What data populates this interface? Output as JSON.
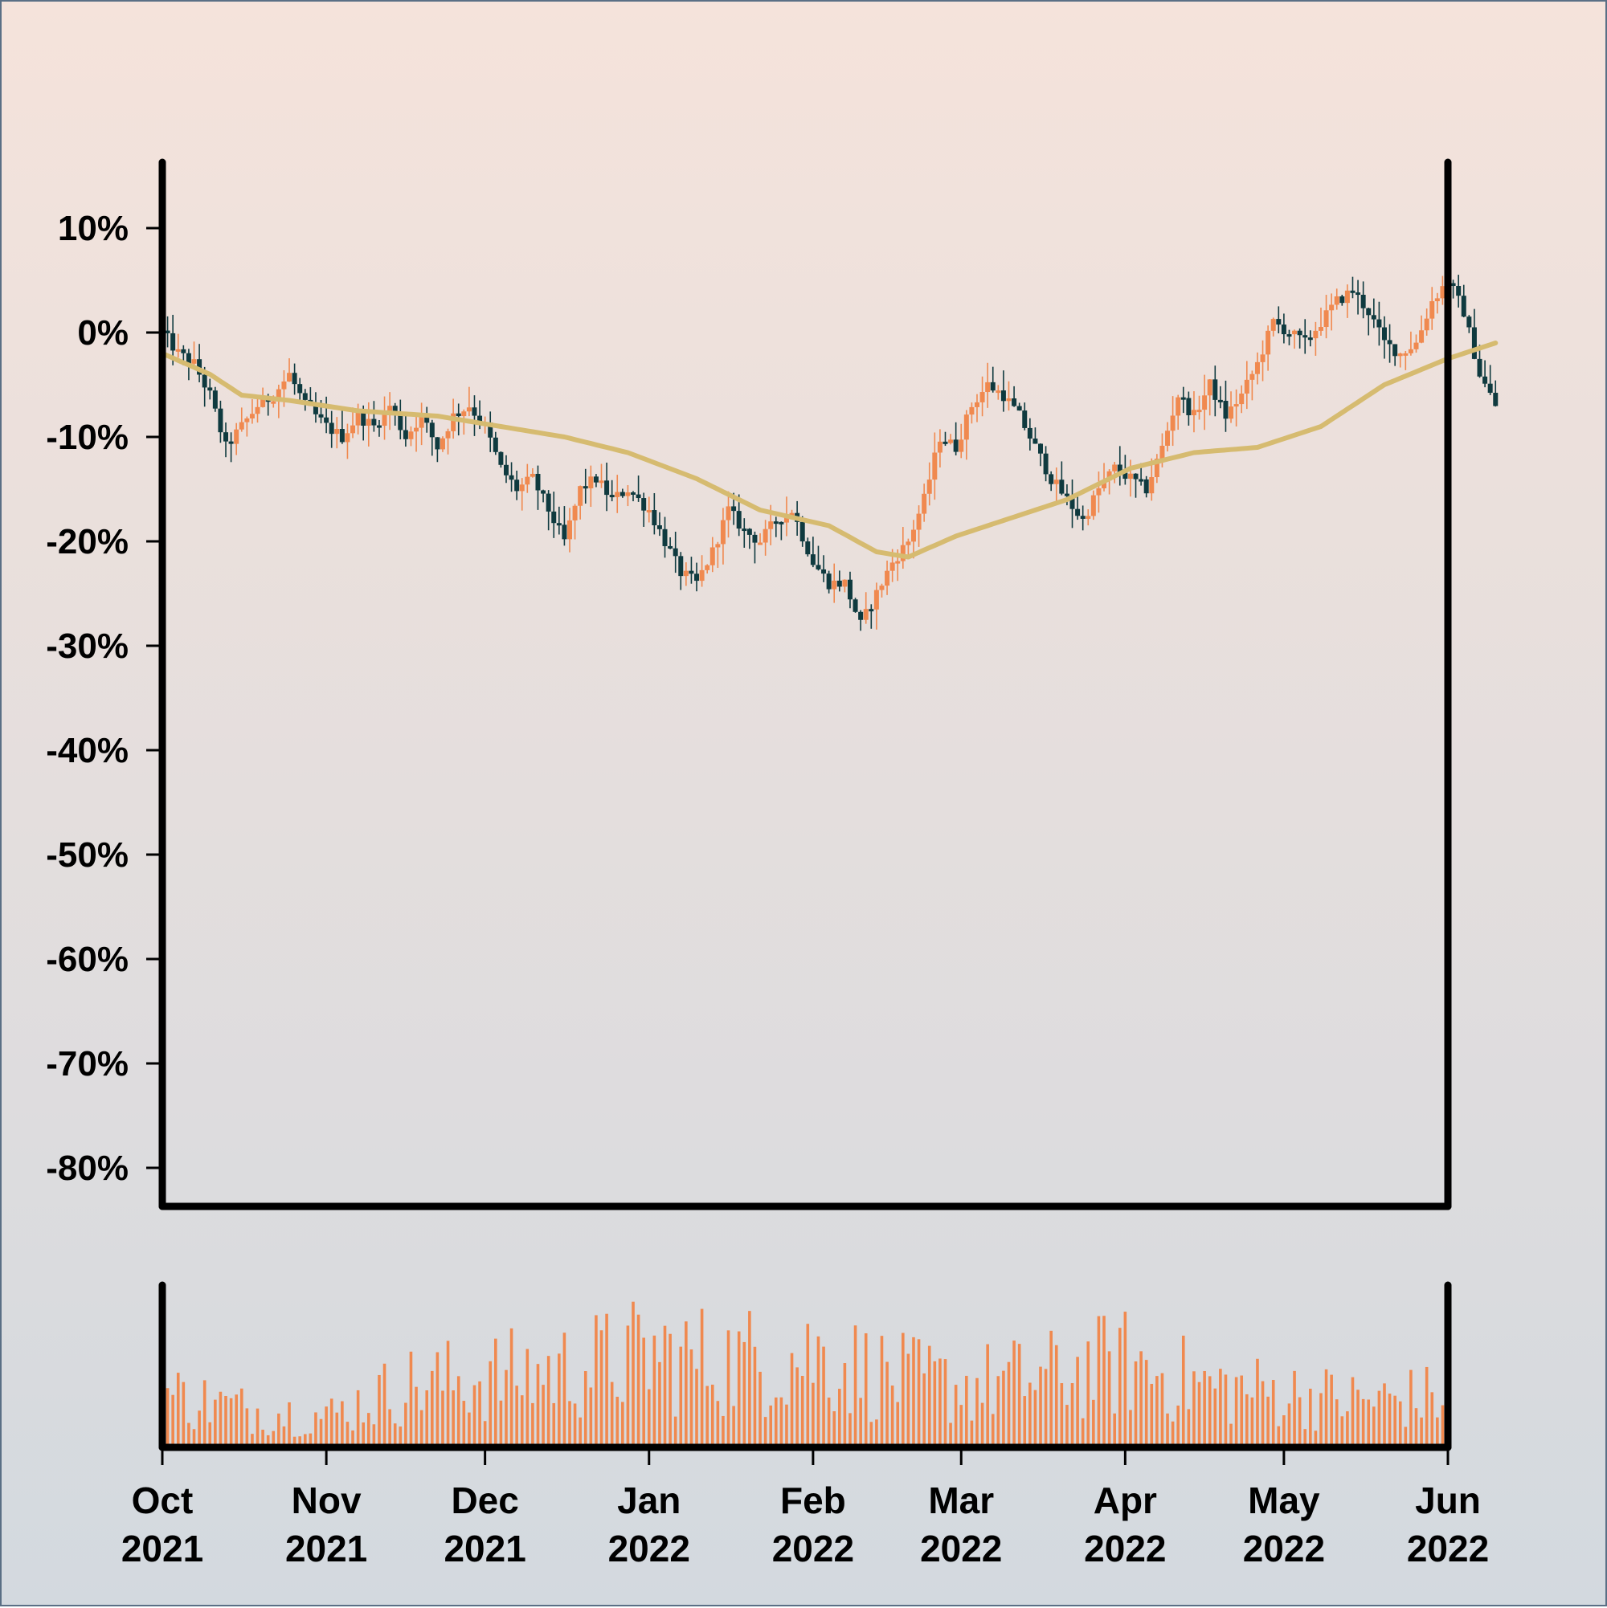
{
  "chart_data": {
    "type": "candlestick",
    "title": "",
    "xlabel": "",
    "ylabel": "",
    "x_range": [
      "2021-10-01",
      "2022-06-01"
    ],
    "ylim": [
      -0.8,
      0.13
    ],
    "yticks": [
      {
        "value": 0.1,
        "label": "10%"
      },
      {
        "value": 0.0,
        "label": "0%"
      },
      {
        "value": -0.1,
        "label": "-10%"
      },
      {
        "value": -0.2,
        "label": "-20%"
      },
      {
        "value": -0.3,
        "label": "-30%"
      },
      {
        "value": -0.4,
        "label": "-40%"
      },
      {
        "value": -0.5,
        "label": "-50%"
      },
      {
        "value": -0.6,
        "label": "-60%"
      },
      {
        "value": -0.7,
        "label": "-70%"
      },
      {
        "value": -0.8,
        "label": "-80%"
      }
    ],
    "xticks": [
      {
        "date": "2021-10-01",
        "month": "Oct",
        "year": "2021"
      },
      {
        "date": "2021-11-01",
        "month": "Nov",
        "year": "2021"
      },
      {
        "date": "2021-12-01",
        "month": "Dec",
        "year": "2021"
      },
      {
        "date": "2022-01-01",
        "month": "Jan",
        "year": "2022"
      },
      {
        "date": "2022-02-01",
        "month": "Feb",
        "year": "2022"
      },
      {
        "date": "2022-03-01",
        "month": "Mar",
        "year": "2022"
      },
      {
        "date": "2022-04-01",
        "month": "Apr",
        "year": "2022"
      },
      {
        "date": "2022-05-01",
        "month": "May",
        "year": "2022"
      },
      {
        "date": "2022-06-01",
        "month": "Jun",
        "year": "2022"
      }
    ],
    "price_path": [
      [
        "2021-10-01",
        0.0
      ],
      [
        "2021-10-04",
        -0.02
      ],
      [
        "2021-10-07",
        -0.03
      ],
      [
        "2021-10-10",
        -0.06
      ],
      [
        "2021-10-13",
        -0.11
      ],
      [
        "2021-10-16",
        -0.09
      ],
      [
        "2021-10-19",
        -0.07
      ],
      [
        "2021-10-22",
        -0.06
      ],
      [
        "2021-10-25",
        -0.04
      ],
      [
        "2021-10-28",
        -0.07
      ],
      [
        "2021-11-01",
        -0.09
      ],
      [
        "2021-11-04",
        -0.1
      ],
      [
        "2021-11-07",
        -0.08
      ],
      [
        "2021-11-10",
        -0.09
      ],
      [
        "2021-11-13",
        -0.07
      ],
      [
        "2021-11-16",
        -0.1
      ],
      [
        "2021-11-19",
        -0.08
      ],
      [
        "2021-11-22",
        -0.11
      ],
      [
        "2021-11-25",
        -0.08
      ],
      [
        "2021-11-28",
        -0.07
      ],
      [
        "2021-12-01",
        -0.09
      ],
      [
        "2021-12-04",
        -0.13
      ],
      [
        "2021-12-07",
        -0.15
      ],
      [
        "2021-12-10",
        -0.14
      ],
      [
        "2021-12-13",
        -0.17
      ],
      [
        "2021-12-16",
        -0.2
      ],
      [
        "2021-12-19",
        -0.15
      ],
      [
        "2021-12-22",
        -0.14
      ],
      [
        "2021-12-25",
        -0.16
      ],
      [
        "2021-12-28",
        -0.15
      ],
      [
        "2022-01-01",
        -0.17
      ],
      [
        "2022-01-04",
        -0.2
      ],
      [
        "2022-01-07",
        -0.23
      ],
      [
        "2022-01-10",
        -0.24
      ],
      [
        "2022-01-13",
        -0.21
      ],
      [
        "2022-01-16",
        -0.17
      ],
      [
        "2022-01-19",
        -0.19
      ],
      [
        "2022-01-22",
        -0.2
      ],
      [
        "2022-01-25",
        -0.18
      ],
      [
        "2022-01-28",
        -0.17
      ],
      [
        "2022-02-01",
        -0.22
      ],
      [
        "2022-02-04",
        -0.24
      ],
      [
        "2022-02-07",
        -0.24
      ],
      [
        "2022-02-10",
        -0.28
      ],
      [
        "2022-02-13",
        -0.25
      ],
      [
        "2022-02-16",
        -0.22
      ],
      [
        "2022-02-19",
        -0.2
      ],
      [
        "2022-02-22",
        -0.16
      ],
      [
        "2022-02-25",
        -0.1
      ],
      [
        "2022-02-28",
        -0.11
      ],
      [
        "2022-03-03",
        -0.07
      ],
      [
        "2022-03-06",
        -0.05
      ],
      [
        "2022-03-09",
        -0.06
      ],
      [
        "2022-03-12",
        -0.08
      ],
      [
        "2022-03-15",
        -0.11
      ],
      [
        "2022-03-18",
        -0.14
      ],
      [
        "2022-03-21",
        -0.16
      ],
      [
        "2022-03-24",
        -0.18
      ],
      [
        "2022-03-27",
        -0.15
      ],
      [
        "2022-03-30",
        -0.13
      ],
      [
        "2022-04-02",
        -0.14
      ],
      [
        "2022-04-05",
        -0.15
      ],
      [
        "2022-04-08",
        -0.11
      ],
      [
        "2022-04-11",
        -0.06
      ],
      [
        "2022-04-14",
        -0.08
      ],
      [
        "2022-04-17",
        -0.05
      ],
      [
        "2022-04-20",
        -0.08
      ],
      [
        "2022-04-23",
        -0.06
      ],
      [
        "2022-04-26",
        -0.03
      ],
      [
        "2022-04-29",
        0.01
      ],
      [
        "2022-05-02",
        0.0
      ],
      [
        "2022-05-05",
        -0.01
      ],
      [
        "2022-05-08",
        0.01
      ],
      [
        "2022-05-11",
        0.03
      ],
      [
        "2022-05-14",
        0.04
      ],
      [
        "2022-05-17",
        0.02
      ],
      [
        "2022-05-20",
        -0.01
      ],
      [
        "2022-05-23",
        -0.02
      ],
      [
        "2022-05-26",
        -0.01
      ],
      [
        "2022-05-29",
        0.03
      ],
      [
        "2022-06-01",
        0.05
      ],
      [
        "2022-06-04",
        0.02
      ],
      [
        "2022-06-07",
        -0.04
      ],
      [
        "2022-06-10",
        -0.07
      ]
    ],
    "moving_average": [
      [
        "2021-10-01",
        -0.02
      ],
      [
        "2021-10-10",
        -0.04
      ],
      [
        "2021-10-16",
        -0.06
      ],
      [
        "2021-10-25",
        -0.065
      ],
      [
        "2021-11-07",
        -0.075
      ],
      [
        "2021-11-22",
        -0.08
      ],
      [
        "2021-12-04",
        -0.09
      ],
      [
        "2021-12-16",
        -0.1
      ],
      [
        "2021-12-28",
        -0.115
      ],
      [
        "2022-01-10",
        -0.14
      ],
      [
        "2022-01-22",
        -0.17
      ],
      [
        "2022-02-04",
        -0.185
      ],
      [
        "2022-02-13",
        -0.21
      ],
      [
        "2022-02-19",
        -0.215
      ],
      [
        "2022-02-28",
        -0.195
      ],
      [
        "2022-03-09",
        -0.18
      ],
      [
        "2022-03-21",
        -0.16
      ],
      [
        "2022-04-02",
        -0.13
      ],
      [
        "2022-04-14",
        -0.115
      ],
      [
        "2022-04-26",
        -0.11
      ],
      [
        "2022-05-08",
        -0.09
      ],
      [
        "2022-05-20",
        -0.05
      ],
      [
        "2022-06-01",
        -0.025
      ],
      [
        "2022-06-10",
        -0.01
      ]
    ],
    "volume_profile": [
      [
        "2021-10-01",
        0.35
      ],
      [
        "2021-10-16",
        0.25
      ],
      [
        "2021-11-01",
        0.2
      ],
      [
        "2021-11-16",
        0.4
      ],
      [
        "2021-12-01",
        0.45
      ],
      [
        "2021-12-16",
        0.5
      ],
      [
        "2022-01-01",
        0.6
      ],
      [
        "2022-01-16",
        0.55
      ],
      [
        "2022-02-01",
        0.6
      ],
      [
        "2022-02-16",
        0.45
      ],
      [
        "2022-03-01",
        0.4
      ],
      [
        "2022-03-16",
        0.45
      ],
      [
        "2022-04-01",
        0.55
      ],
      [
        "2022-04-16",
        0.4
      ],
      [
        "2022-05-01",
        0.35
      ],
      [
        "2022-05-16",
        0.3
      ],
      [
        "2022-06-10",
        0.35
      ]
    ],
    "colors": {
      "up": "#f0894f",
      "down": "#0f3a3f",
      "moving_average": "#d6bb70",
      "volume": "#f0894f",
      "axis": "#000000"
    },
    "grid": false
  }
}
